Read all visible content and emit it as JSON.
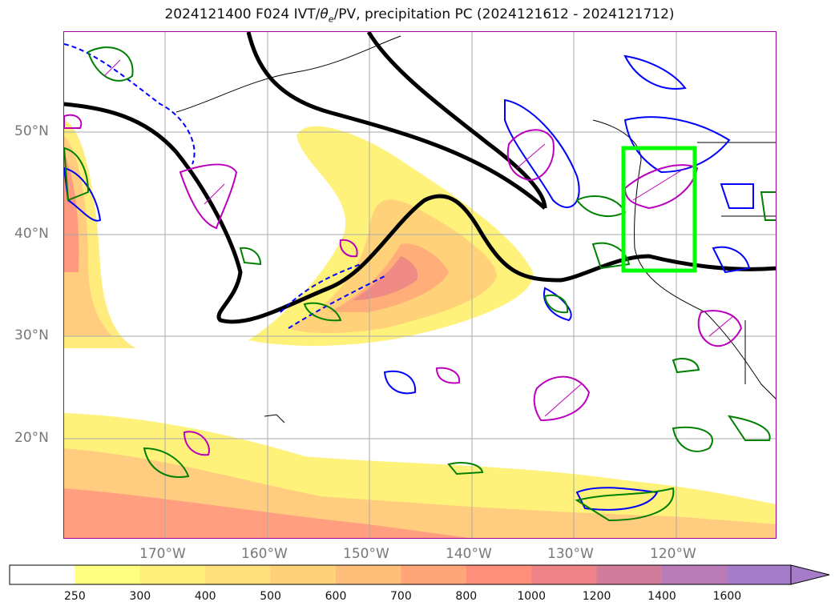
{
  "title": {
    "prefix": "2024121400 F024 IVT/",
    "theta": "θ",
    "sub": "e",
    "suffix": "/PV, precipitation PC (2024121612 - 2024121712)"
  },
  "lat_labels": [
    "50°N",
    "40°N",
    "30°N",
    "20°N"
  ],
  "lon_labels": [
    "170°W",
    "160°W",
    "150°W",
    "140°W",
    "130°W",
    "120°W"
  ],
  "colorbar": {
    "ticks": [
      "250",
      "300",
      "400",
      "500",
      "600",
      "700",
      "800",
      "1000",
      "1200",
      "1400",
      "1600"
    ],
    "colors": [
      "#ffffff",
      "#ffff80",
      "#fff07a",
      "#ffe07a",
      "#ffd27a",
      "#ffbf7a",
      "#ffa57a",
      "#ff8f7a",
      "#ee8488",
      "#d27c9c",
      "#b97cb8",
      "#a57cc8"
    ],
    "extend": "max"
  },
  "legend_colors": {
    "ivt_contour": "#000000",
    "theta_e": "#0000ff",
    "pv": "#008000",
    "precip_pc": "#bb00bb",
    "highlight_box": "#00ff00"
  }
}
